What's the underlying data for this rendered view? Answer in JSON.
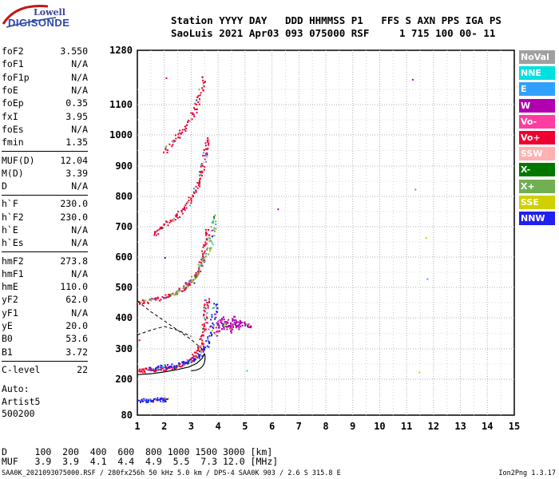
{
  "logo": {
    "line1": "Lowell",
    "line2": "DIGISONDE"
  },
  "header": {
    "line1": "Station YYYY DAY   DDD HHMMSS P1   FFS S AXN PPS IGA PS",
    "line2": "SaoLuis 2021 Apr03 093 075000 RSF     1 715 100 00- 11"
  },
  "params": [
    [
      {
        "k": "foF2",
        "v": "3.550"
      },
      {
        "k": "foF1",
        "v": "N/A"
      },
      {
        "k": "foF1p",
        "v": "N/A"
      },
      {
        "k": "foE",
        "v": "N/A"
      },
      {
        "k": "foEp",
        "v": "0.35"
      },
      {
        "k": "fxI",
        "v": "3.95"
      },
      {
        "k": "foEs",
        "v": "N/A"
      },
      {
        "k": "fmin",
        "v": "1.35"
      }
    ],
    [
      {
        "k": "MUF(D)",
        "v": "12.04"
      },
      {
        "k": "M(D)",
        "v": "3.39"
      },
      {
        "k": "D",
        "v": "N/A"
      }
    ],
    [
      {
        "k": "h`F",
        "v": "230.0"
      },
      {
        "k": "h`F2",
        "v": "230.0"
      },
      {
        "k": "h`E",
        "v": "N/A"
      },
      {
        "k": "h`Es",
        "v": "N/A"
      }
    ],
    [
      {
        "k": "hmF2",
        "v": "273.8"
      },
      {
        "k": "hmF1",
        "v": "N/A"
      },
      {
        "k": "hmE",
        "v": "110.0"
      },
      {
        "k": "yF2",
        "v": "62.0"
      },
      {
        "k": "yF1",
        "v": "N/A"
      },
      {
        "k": "yE",
        "v": "20.0"
      },
      {
        "k": "B0",
        "v": "53.6"
      },
      {
        "k": "B1",
        "v": "3.72"
      }
    ],
    [
      {
        "k": "C-level",
        "v": "22"
      }
    ]
  ],
  "autoscaling": {
    "line1": "Auto:",
    "line2": "Artist5",
    "line3": "500200"
  },
  "legend": [
    {
      "label": "NoVal",
      "color": "#a0a0a0"
    },
    {
      "label": "NNE",
      "color": "#00e0e0"
    },
    {
      "label": "E",
      "color": "#30a0ff"
    },
    {
      "label": "W",
      "color": "#b000b0"
    },
    {
      "label": "Vo-",
      "color": "#ff3ca0"
    },
    {
      "label": "Vo+",
      "color": "#f00030"
    },
    {
      "label": "SSW",
      "color": "#ffb0b0"
    },
    {
      "label": "X-",
      "color": "#007800"
    },
    {
      "label": "X+",
      "color": "#70b050"
    },
    {
      "label": "SSE",
      "color": "#d0d000"
    },
    {
      "label": "NNW",
      "color": "#2020f0"
    }
  ],
  "footer": {
    "line1": "D     100  200  400  600  800 1000 1500 3000 [km]",
    "line2": "MUF   3.9  3.9  4.1  4.4  4.9  5.5  7.3 12.0 [MHz]",
    "info": "SAA0K_2021093075000.RSF / 280fx256h 50 kHz 5.0 km / DPS-4 SAA0K 903 / 2.6 S 315.8 E",
    "version": "Ion2Png 1.3.17"
  },
  "chart_data": {
    "type": "scatter",
    "title": "",
    "xlabel": "",
    "ylabel": "",
    "xlim": [
      1,
      15
    ],
    "ylim": [
      80,
      1280
    ],
    "x_ticks": [
      1,
      2,
      3,
      4,
      5,
      6,
      7,
      8,
      9,
      10,
      11,
      12,
      13,
      14,
      15
    ],
    "y_ticks": [
      80,
      200,
      300,
      400,
      500,
      600,
      700,
      800,
      900,
      1000,
      1100,
      1280
    ],
    "grid": true,
    "traces": [
      {
        "mode": "O",
        "color": "#f00030",
        "points": [
          [
            1.05,
            230
          ],
          [
            1.3,
            232
          ],
          [
            1.6,
            234
          ],
          [
            1.9,
            236
          ],
          [
            2.2,
            240
          ],
          [
            2.5,
            246
          ],
          [
            2.8,
            256
          ],
          [
            3.0,
            268
          ],
          [
            3.2,
            290
          ],
          [
            3.35,
            320
          ],
          [
            3.45,
            360
          ],
          [
            3.5,
            400
          ],
          [
            3.55,
            440
          ],
          [
            3.6,
            470
          ]
        ]
      },
      {
        "mode": "X",
        "color": "#2020f0",
        "points": [
          [
            1.5,
            238
          ],
          [
            1.9,
            242
          ],
          [
            2.3,
            246
          ],
          [
            2.7,
            254
          ],
          [
            3.0,
            264
          ],
          [
            3.3,
            282
          ],
          [
            3.5,
            305
          ],
          [
            3.65,
            340
          ],
          [
            3.75,
            380
          ],
          [
            3.85,
            420
          ],
          [
            3.9,
            460
          ]
        ]
      },
      {
        "mode": "O2",
        "color": "#f00030",
        "points": [
          [
            1.05,
            450
          ],
          [
            1.4,
            458
          ],
          [
            1.8,
            465
          ],
          [
            2.2,
            475
          ],
          [
            2.5,
            488
          ],
          [
            2.8,
            505
          ],
          [
            3.0,
            520
          ],
          [
            3.2,
            545
          ],
          [
            3.35,
            580
          ],
          [
            3.45,
            620
          ],
          [
            3.55,
            660
          ],
          [
            3.6,
            700
          ]
        ]
      },
      {
        "mode": "X2",
        "color": "#70b050",
        "points": [
          [
            2.3,
            480
          ],
          [
            2.7,
            500
          ],
          [
            3.0,
            525
          ],
          [
            3.3,
            560
          ],
          [
            3.5,
            600
          ],
          [
            3.7,
            650
          ],
          [
            3.8,
            700
          ],
          [
            3.85,
            750
          ]
        ]
      },
      {
        "mode": "O3",
        "color": "#f00030",
        "points": [
          [
            1.6,
            680
          ],
          [
            1.9,
            700
          ],
          [
            2.2,
            720
          ],
          [
            2.5,
            740
          ],
          [
            2.8,
            770
          ],
          [
            3.0,
            800
          ],
          [
            3.2,
            840
          ],
          [
            3.35,
            880
          ],
          [
            3.45,
            920
          ],
          [
            3.55,
            960
          ],
          [
            3.6,
            1000
          ]
        ]
      },
      {
        "mode": "O4",
        "color": "#f00030",
        "points": [
          [
            2.0,
            950
          ],
          [
            2.4,
            990
          ],
          [
            2.7,
            1020
          ],
          [
            3.0,
            1060
          ],
          [
            3.2,
            1100
          ],
          [
            3.35,
            1150
          ],
          [
            3.45,
            1200
          ]
        ]
      },
      {
        "mode": "W",
        "color": "#b000b0",
        "points": [
          [
            3.9,
            350
          ],
          [
            4.0,
            380
          ],
          [
            4.1,
            400
          ],
          [
            4.2,
            370
          ],
          [
            4.3,
            390
          ],
          [
            4.4,
            360
          ],
          [
            4.5,
            380
          ],
          [
            4.6,
            400
          ],
          [
            4.7,
            370
          ],
          [
            4.8,
            390
          ],
          [
            5.0,
            380
          ],
          [
            5.2,
            375
          ]
        ]
      },
      {
        "mode": "low",
        "color": "#2020f0",
        "points": [
          [
            1.1,
            130
          ],
          [
            1.3,
            132
          ],
          [
            1.5,
            130
          ],
          [
            1.8,
            134
          ],
          [
            2.0,
            131
          ],
          [
            2.1,
            140
          ]
        ]
      }
    ],
    "profile_curve": [
      [
        1.0,
        215
      ],
      [
        1.5,
        218
      ],
      [
        2.0,
        224
      ],
      [
        2.5,
        232
      ],
      [
        2.9,
        240
      ],
      [
        3.2,
        252
      ],
      [
        3.4,
        268
      ],
      [
        3.5,
        285
      ]
    ],
    "dashed_curves": [
      [
        [
          1.0,
          455
        ],
        [
          1.5,
          420
        ],
        [
          2.0,
          390
        ],
        [
          2.5,
          360
        ],
        [
          3.0,
          330
        ],
        [
          3.4,
          300
        ]
      ],
      [
        [
          1.0,
          345
        ],
        [
          1.5,
          360
        ],
        [
          2.0,
          372
        ],
        [
          2.5,
          360
        ],
        [
          3.0,
          340
        ]
      ]
    ]
  }
}
